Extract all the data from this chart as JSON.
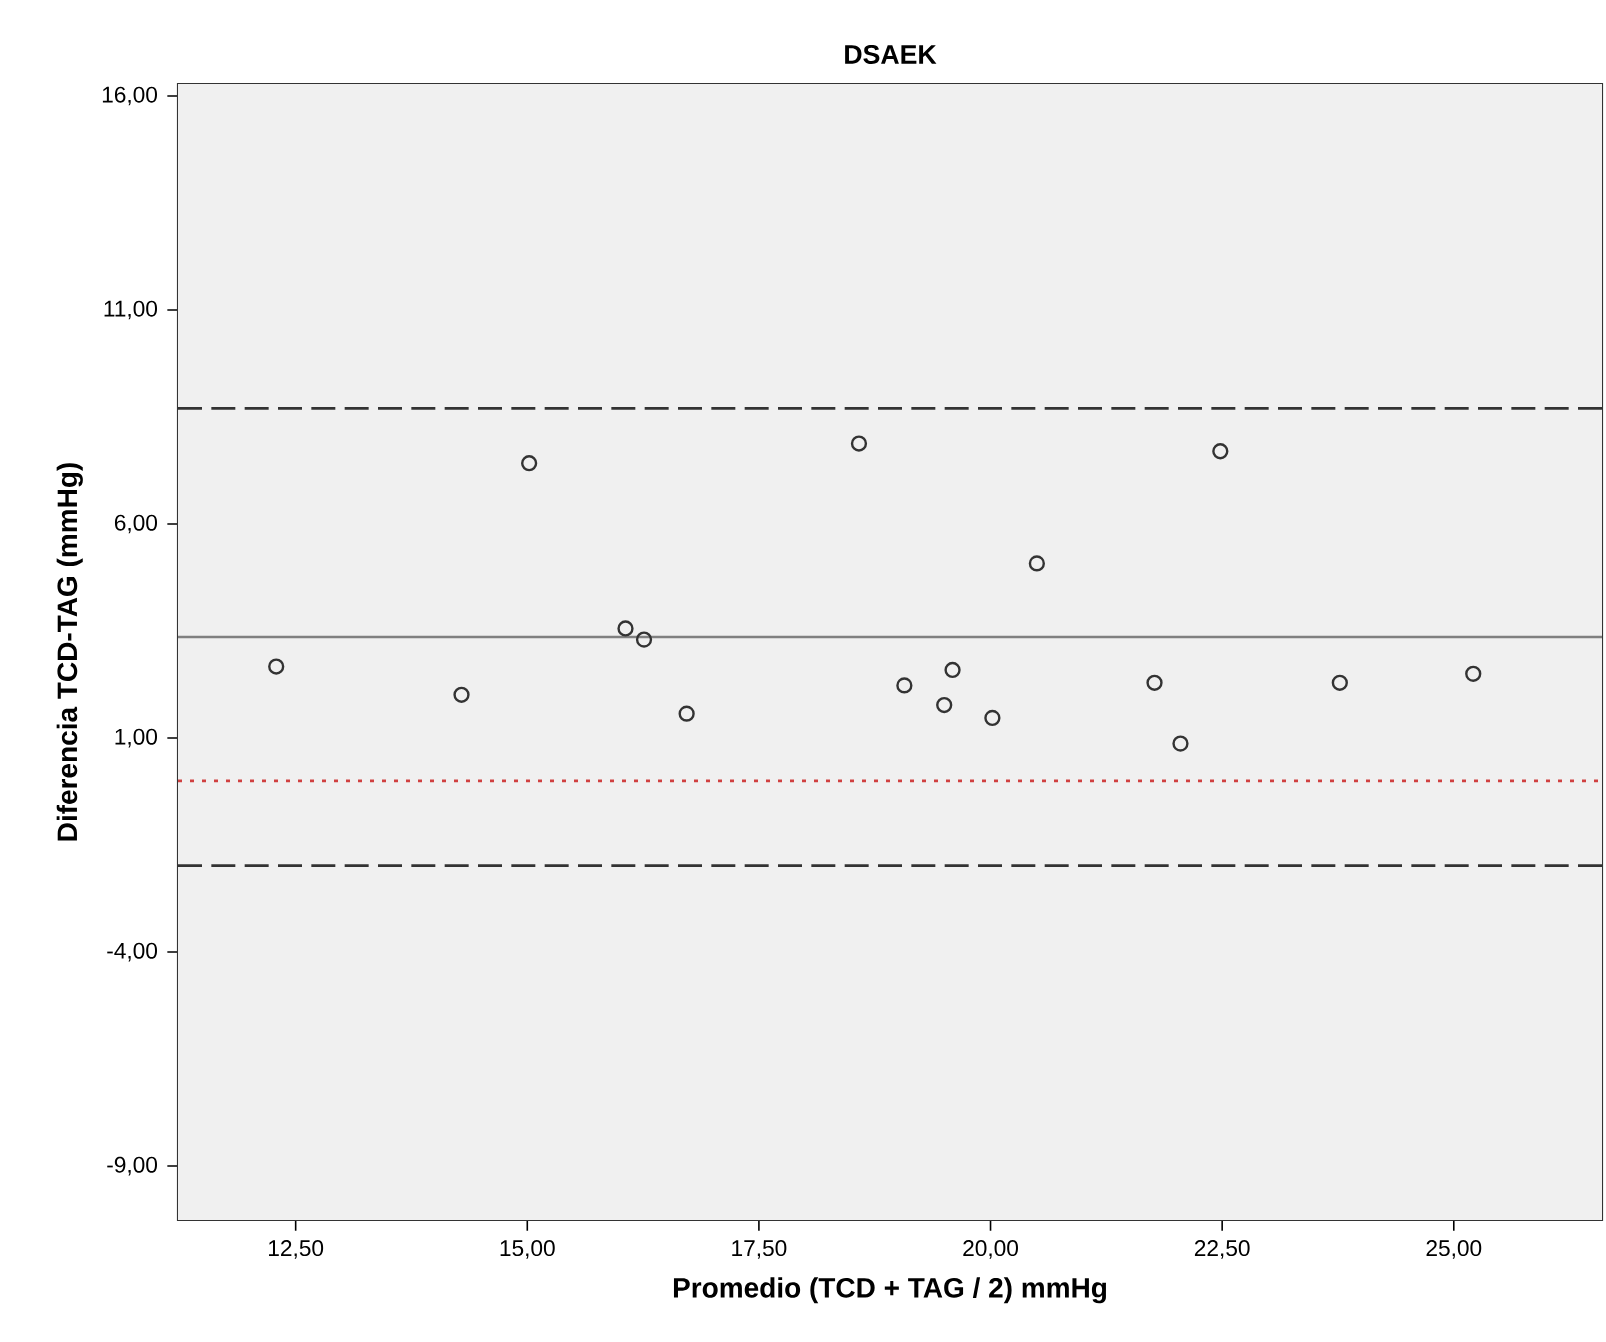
{
  "chart_data": {
    "type": "scatter",
    "title": "DSAEK",
    "xlabel": "Promedio (TCD + TAG / 2) mmHg",
    "ylabel": "Diferencia TCD-TAG (mmHg)",
    "x": [
      12.29,
      14.29,
      15.02,
      16.06,
      16.26,
      16.72,
      18.58,
      19.07,
      19.59,
      19.5,
      20.02,
      20.5,
      21.77,
      22.05,
      22.48,
      23.77,
      25.21
    ],
    "values": [
      2.67,
      2.01,
      7.42,
      3.56,
      3.3,
      1.57,
      7.88,
      2.23,
      2.59,
      1.77,
      1.47,
      5.08,
      2.29,
      0.87,
      7.7,
      2.29,
      2.5
    ],
    "color": "#333333",
    "marker": "circle",
    "xlim": [
      11.23,
      26.6
    ],
    "ylim": [
      -10.26,
      16.28
    ],
    "xticks": [
      {
        "value": 12.5,
        "label": "12,50"
      },
      {
        "value": 15,
        "label": "15,00"
      },
      {
        "value": 17.5,
        "label": "17,50"
      },
      {
        "value": 20,
        "label": "20,00"
      },
      {
        "value": 22.5,
        "label": "22,50"
      },
      {
        "value": 25,
        "label": "25,00"
      }
    ],
    "yticks": [
      {
        "value": -9,
        "label": "-9,00"
      },
      {
        "value": -4,
        "label": "-4,00"
      },
      {
        "value": 1,
        "label": "1,00"
      },
      {
        "value": 6,
        "label": "6,00"
      },
      {
        "value": 11,
        "label": "11,00"
      },
      {
        "value": 16,
        "label": "16,00"
      }
    ],
    "ref_lines": [
      {
        "axis": "y",
        "value": 8.7,
        "color": "#333333",
        "line_style": "dashed"
      },
      {
        "axis": "y",
        "value": 3.36,
        "color": "#808080",
        "line_style": "solid"
      },
      {
        "axis": "y",
        "value": 0,
        "color": "#d04040",
        "line_style": "dotted"
      },
      {
        "axis": "y",
        "value": -1.98,
        "color": "#333333",
        "line_style": "dashed"
      }
    ]
  }
}
